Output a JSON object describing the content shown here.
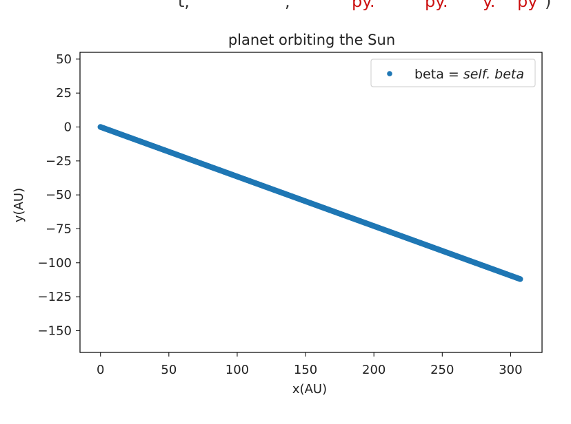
{
  "header_fragment": {
    "parts": [
      {
        "text": "t,",
        "color": "#333333"
      },
      {
        "text": "\",",
        "color": "#333333"
      },
      {
        "text": "py.",
        "color": "#cc1111"
      },
      {
        "text": "py.",
        "color": "#cc1111"
      },
      {
        "text": "y.",
        "color": "#cc1111"
      },
      {
        "text": "py",
        "color": "#cc1111"
      },
      {
        "text": ")",
        "color": "#333333"
      }
    ]
  },
  "chart_data": {
    "type": "scatter",
    "title": "planet orbiting the Sun",
    "xlabel": "x(AU)",
    "ylabel": "y(AU)",
    "xlim": [
      -15,
      323
    ],
    "ylim": [
      -166,
      55
    ],
    "xticks": [
      0,
      50,
      100,
      150,
      200,
      250,
      300
    ],
    "yticks": [
      50,
      25,
      0,
      -25,
      -50,
      -75,
      -100,
      -125,
      -150
    ],
    "grid": false,
    "legend": {
      "placement": "top-right",
      "label_plain": "beta = ",
      "label_italic": "self. beta"
    },
    "series": [
      {
        "name": "beta = self. beta",
        "color": "#1f77b4",
        "marker": "dot",
        "x_start": 0,
        "y_start": 0,
        "x_end": 307,
        "y_end": -112,
        "points": 420
      }
    ]
  }
}
